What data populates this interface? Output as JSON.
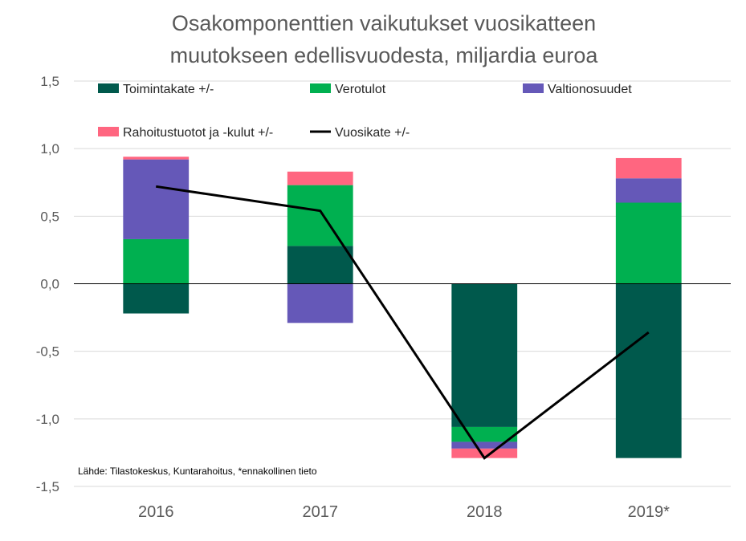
{
  "chart_data": {
    "type": "bar",
    "stacked": true,
    "title_lines": [
      "Osakomponenttien vaikutukset vuosikatteen",
      "muutokseen edellisvuodesta, miljardia euroa"
    ],
    "categories": [
      "2016",
      "2017",
      "2018",
      "2019*"
    ],
    "y_ticks": [
      "1,5",
      "1,0",
      "0,5",
      "0,0",
      "-0,5",
      "-1,0",
      "-1,5"
    ],
    "y_tick_values": [
      1.5,
      1.0,
      0.5,
      0.0,
      -0.5,
      -1.0,
      -1.5
    ],
    "ylim": [
      -1.5,
      1.5
    ],
    "grid": true,
    "legend_position": "top",
    "series": [
      {
        "name": "Toimintakate +/-",
        "color": "#00594c",
        "values": [
          -0.22,
          0.28,
          -1.06,
          -1.29
        ]
      },
      {
        "name": "Verotulot",
        "color": "#00b050",
        "values": [
          0.33,
          0.45,
          -0.11,
          0.6
        ]
      },
      {
        "name": "Valtionosuudet",
        "color": "#6558b8",
        "values": [
          0.59,
          -0.29,
          -0.05,
          0.18
        ]
      },
      {
        "name": "Rahoitustuotot ja -kulut +/-",
        "color": "#ff6680",
        "values": [
          0.02,
          0.1,
          -0.07,
          0.15
        ]
      }
    ],
    "line": {
      "name": "Vuosikate +/-",
      "color": "#000000",
      "values": [
        0.72,
        0.54,
        -1.29,
        -0.36
      ]
    },
    "source_note": "Lähde: Tilastokeskus, Kuntarahoitus, *ennakollinen tieto"
  }
}
